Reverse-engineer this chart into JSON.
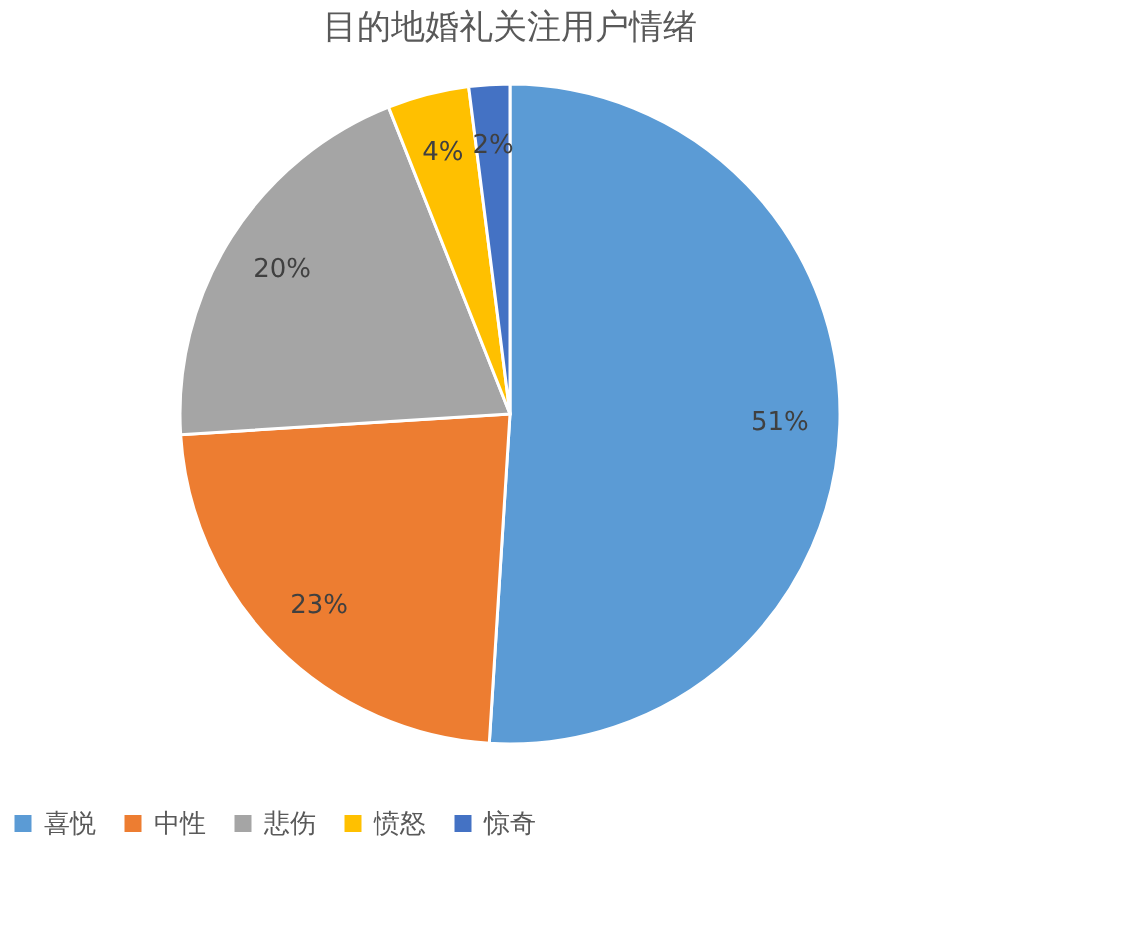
{
  "chart_data": {
    "type": "pie",
    "title": "目的地婚礼关注用户情绪",
    "categories": [
      "喜悦",
      "中性",
      "悲伤",
      "愤怒",
      "惊奇"
    ],
    "values": [
      51,
      23,
      20,
      4,
      2
    ],
    "colors": [
      "#5b9bd5",
      "#ed7d31",
      "#a5a5a5",
      "#ffc000",
      "#4472c4"
    ],
    "value_labels": [
      "51%",
      "23%",
      "20%",
      "4%",
      "2%"
    ],
    "legend": "bottom"
  }
}
